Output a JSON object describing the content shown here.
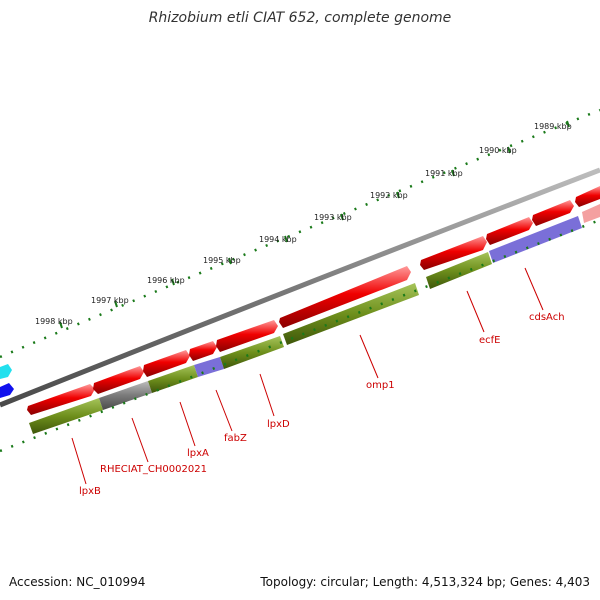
{
  "title": "Rhizobium etli CIAT 652, complete genome",
  "accession_label": "Accession: NC_010994",
  "summary_label": "Topology: circular; Length: 4,513,324 bp; Genes: 4,403",
  "colors": {
    "backbone": "#7a7a7a",
    "cds_forward": "#e00000",
    "cds_faded": "#f4a0a0",
    "gene": "#6e8f1c",
    "gene_highlight": "#7a6fd8",
    "gene_gray": "#6a6a6a",
    "scale_ticks": "#1a7a1a",
    "label": "#cc0000",
    "cyan_feature": "#22e0ee",
    "blue_feature": "#1010ee"
  },
  "scale_labels": [
    "1989 kbp",
    "1990 kbp",
    "1991 kbp",
    "1992 kbp",
    "1993 kbp",
    "1994 kbp",
    "1995 kbp",
    "1996 kbp",
    "1997 kbp",
    "1998 kbp"
  ],
  "gene_labels": [
    "lpxB",
    "RHECIAT_CH0002021",
    "lpxA",
    "fabZ",
    "lpxD",
    "omp1",
    "ecfE",
    "cdsAch"
  ]
}
